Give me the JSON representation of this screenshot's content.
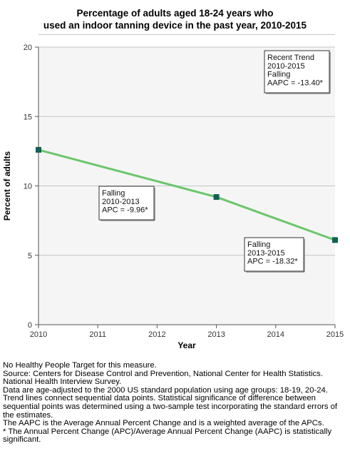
{
  "title_lines": [
    "Percentage of adults aged 18-24 years who",
    "used an indoor tanning device in the past year, 2010-2015"
  ],
  "chart_data": {
    "type": "line",
    "x": [
      2010,
      2013,
      2015
    ],
    "series": [
      {
        "values": [
          12.6,
          9.2,
          6.1
        ],
        "color": "#6cc66c",
        "marker_color": "#135f55"
      }
    ],
    "xlabel": "Year",
    "ylabel": "Percent of adults",
    "xlim": [
      2010,
      2015
    ],
    "ylim": [
      0,
      20
    ],
    "x_ticks": [
      2010,
      2011,
      2012,
      2013,
      2014,
      2015
    ],
    "y_ticks": [
      0,
      5,
      10,
      15,
      20
    ],
    "grid": true,
    "plot_background": "#f5f5f5",
    "annotations": [
      {
        "lines": [
          "Falling",
          "2010-2013",
          "APC = -9.96*"
        ]
      },
      {
        "lines": [
          "Falling",
          "2013-2015",
          "APC = -18.32*"
        ]
      },
      {
        "lines": [
          "Recent Trend",
          "2010-2015",
          "Falling",
          "AAPC = -13.40*"
        ]
      }
    ]
  },
  "footnotes": [
    "No Healthy People Target for this measure.",
    "Source: Centers for Disease Control and Prevention, National Center for Health Statistics. National Health Interview Survey.",
    "Data are age-adjusted to the 2000 US standard population using age groups: 18-19, 20-24.",
    "Trend lines connect sequential data points. Statistical significance of difference between sequential points was determined using a two-sample test incorporating the standard errors of the estimates.",
    "The AAPC is the Average Annual Percent Change and is a weighted average of the APCs.",
    "* The Annual Percent Change (APC)/Average Annual Percent Change (AAPC) is statistically significant."
  ]
}
